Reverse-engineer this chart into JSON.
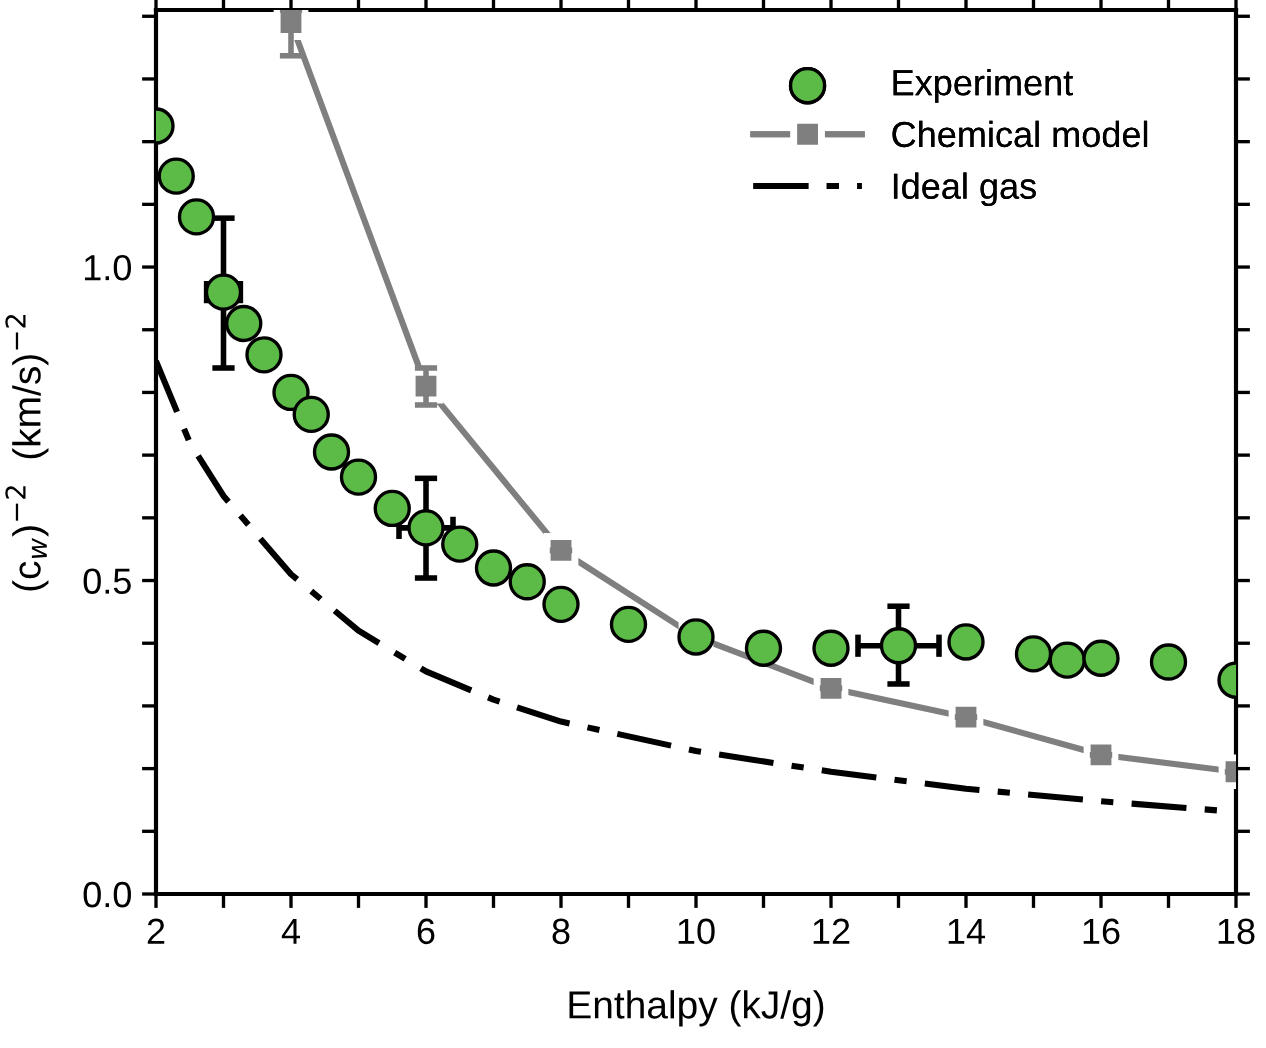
{
  "chart_data": {
    "type": "scatter",
    "xlabel": "Enthalpy (kJ/g)",
    "ylabel": "(c$_{w}$)$^{−2}$  (km/s)$^{−2}$",
    "xlim": [
      2,
      18
    ],
    "ylim": [
      0,
      1.41
    ],
    "xticks": [
      2,
      {
        "value": 3,
        "label": null
      },
      4,
      {
        "value": 5,
        "label": null
      },
      6,
      {
        "value": 7,
        "label": null
      },
      8,
      {
        "value": 9,
        "label": null
      },
      10,
      {
        "value": 11,
        "label": null
      },
      12,
      {
        "value": 13,
        "label": null
      },
      14,
      {
        "value": 15,
        "label": null
      },
      16,
      {
        "value": 17,
        "label": null
      },
      18
    ],
    "yticks": [
      {
        "value": 0,
        "label": "0.0"
      },
      {
        "value": 0.1,
        "label": null
      },
      {
        "value": 0.2,
        "label": null
      },
      {
        "value": 0.3,
        "label": null
      },
      {
        "value": 0.4,
        "label": null
      },
      0.5,
      {
        "value": 0.6,
        "label": null
      },
      {
        "value": 0.7,
        "label": null
      },
      {
        "value": 0.8,
        "label": null
      },
      {
        "value": 0.9,
        "label": null
      },
      {
        "value": 1.0,
        "label": "1.0"
      },
      {
        "value": 1.1,
        "label": null
      },
      {
        "value": 1.2,
        "label": null
      },
      {
        "value": 1.3,
        "label": null
      },
      {
        "value": 1.4,
        "label": null
      }
    ],
    "legend": "top right",
    "grid": false,
    "series": [
      {
        "name": "Experiment",
        "marker": "circle",
        "color": "#5cba47",
        "x": [
          2,
          2.3,
          2.6,
          3,
          3.3,
          3.6,
          4,
          4.3,
          4.6,
          5,
          5.5,
          6,
          6.5,
          7,
          7.5,
          8,
          9,
          10,
          11,
          12,
          13,
          14,
          15,
          15.5,
          16,
          17,
          18
        ],
        "values": [
          1.225,
          1.145,
          1.08,
          0.96,
          0.91,
          0.86,
          0.8,
          0.765,
          0.705,
          0.665,
          0.615,
          0.584,
          0.558,
          0.52,
          0.498,
          0.462,
          0.43,
          0.41,
          0.392,
          0.392,
          0.396,
          0.402,
          0.383,
          0.373,
          0.376,
          0.37,
          0.341
        ],
        "errors": [
          null,
          null,
          null,
          [
            0.839,
            1.078
          ],
          null,
          null,
          null,
          null,
          null,
          null,
          null,
          [
            0.504,
            0.663
          ],
          null,
          null,
          null,
          null,
          null,
          null,
          null,
          null,
          [
            0.335,
            0.459
          ],
          null,
          null,
          null,
          null,
          null,
          null
        ],
        "xerrors": [
          null,
          null,
          null,
          0.25,
          null,
          null,
          null,
          null,
          null,
          null,
          null,
          0.4,
          null,
          null,
          null,
          null,
          null,
          null,
          null,
          null,
          0.6,
          null,
          null,
          null,
          null,
          null,
          null
        ]
      },
      {
        "name": "Chemical model",
        "type": "line",
        "marker": "square",
        "line_style": "solid",
        "color": "#7f7f7f",
        "x": [
          4,
          6,
          8,
          10,
          12,
          14,
          16,
          18
        ],
        "values": [
          1.39,
          0.81,
          0.548,
          0.41,
          0.328,
          0.282,
          0.222,
          0.195
        ],
        "errors": [
          [
            1.337,
            1.41
          ],
          [
            0.78,
            0.839
          ],
          null,
          null,
          null,
          null,
          null,
          null
        ]
      },
      {
        "name": "Ideal gas",
        "type": "line",
        "marker": "none",
        "line_style": "dashdot",
        "color": "#000000",
        "x": [
          2,
          2.5,
          3,
          4,
          5,
          6,
          7,
          8,
          10,
          12,
          14,
          16,
          18
        ],
        "values": [
          0.85,
          0.72,
          0.635,
          0.51,
          0.42,
          0.355,
          0.31,
          0.275,
          0.228,
          0.195,
          0.168,
          0.148,
          0.131
        ]
      }
    ]
  }
}
